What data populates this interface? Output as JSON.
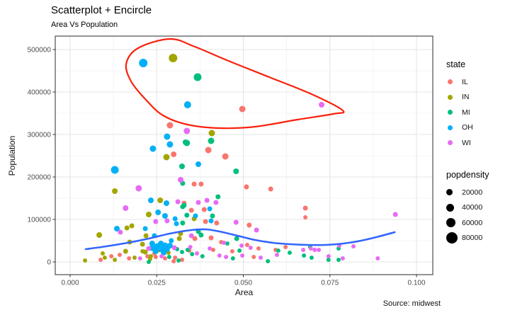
{
  "title": "Scatterplot + Encircle",
  "subtitle": "Area Vs Population",
  "caption": "Source: midwest",
  "axes": {
    "x": {
      "label": "Area"
    },
    "y": {
      "label": "Population"
    }
  },
  "legend": {
    "state": {
      "title": "state",
      "items": [
        {
          "label": "IL",
          "color": "#F8766D"
        },
        {
          "label": "IN",
          "color": "#A3A500"
        },
        {
          "label": "MI",
          "color": "#00BF7D"
        },
        {
          "label": "OH",
          "color": "#00B0F6"
        },
        {
          "label": "WI",
          "color": "#E76BF3"
        }
      ]
    },
    "popdensity": {
      "title": "popdensity",
      "items": [
        {
          "label": "20000",
          "diameter": 9
        },
        {
          "label": "40000",
          "diameter": 11
        },
        {
          "label": "60000",
          "diameter": 13
        },
        {
          "label": "80000",
          "diameter": 16
        }
      ]
    }
  },
  "chart_data": {
    "type": "scatter",
    "title": "Scatterplot + Encircle",
    "subtitle": "Area Vs Population",
    "xlabel": "Area",
    "ylabel": "Population",
    "xlim": [
      -0.0043,
      0.1047
    ],
    "ylim": [
      -30000,
      531667
    ],
    "x_ticks": {
      "values": [
        0,
        0.025,
        0.05,
        0.075,
        0.1
      ],
      "labels": [
        "0.000",
        "0.025",
        "0.050",
        "0.075",
        "0.100"
      ]
    },
    "y_ticks": {
      "values": [
        0,
        100000,
        200000,
        300000,
        400000,
        500000
      ],
      "labels": [
        "0",
        "100000",
        "200000",
        "300000",
        "400000",
        "500000"
      ]
    },
    "grid": "on",
    "legend_position": "right",
    "series": [
      {
        "name": "IL",
        "color": "#F8766D",
        "points": [
          [
            0.0288,
            321667,
            4.5
          ],
          [
            0.0299,
            253333,
            4
          ],
          [
            0.0399,
            263333,
            4.5
          ],
          [
            0.0448,
            248333,
            4.5
          ],
          [
            0.0497,
            360000,
            4.5
          ],
          [
            0.0358,
            183333,
            3.5
          ],
          [
            0.0378,
            183333,
            3.5
          ],
          [
            0.0509,
            176667,
            3.5
          ],
          [
            0.0579,
            171667,
            3.5
          ],
          [
            0.0679,
            126667,
            3.5
          ],
          [
            0.0679,
            105000,
            3
          ],
          [
            0.0329,
            138333,
            3.5
          ],
          [
            0.0387,
            123333,
            3.5
          ],
          [
            0.035,
            121667,
            3.5
          ],
          [
            0.0391,
            95000,
            3.5
          ],
          [
            0.0423,
            91667,
            3.5
          ],
          [
            0.0517,
            86667,
            3.5
          ],
          [
            0.0407,
            56667,
            3.5
          ],
          [
            0.036,
            55000,
            3.5
          ],
          [
            0.0436,
            46667,
            3
          ],
          [
            0.0511,
            40000,
            3
          ],
          [
            0.0544,
            31667,
            3
          ],
          [
            0.0468,
            25000,
            3
          ],
          [
            0.0413,
            28333,
            3
          ],
          [
            0.0344,
            26667,
            3
          ],
          [
            0.0622,
            35000,
            3
          ],
          [
            0.0593,
            28333,
            3
          ],
          [
            0.053,
            11667,
            3
          ],
          [
            0.0088,
            5000,
            3
          ],
          [
            0.0119,
            13333,
            3
          ],
          [
            0.0143,
            16667,
            3
          ],
          [
            0.017,
            8333,
            3
          ],
          [
            0.0223,
            13333,
            3
          ],
          [
            0.0243,
            20000,
            3
          ],
          [
            0.0274,
            8333,
            3
          ],
          [
            0.0303,
            10000,
            3
          ],
          [
            0.0247,
            11667,
            3
          ],
          [
            0.0299,
            1667,
            3
          ],
          [
            0.0323,
            5000,
            3
          ]
        ]
      },
      {
        "name": "IN",
        "color": "#A3A500",
        "points": [
          [
            0.0297,
            480000,
            6
          ],
          [
            0.0278,
            246667,
            4.5
          ],
          [
            0.0409,
            303333,
            4.5
          ],
          [
            0.0129,
            166667,
            4
          ],
          [
            0.026,
            145000,
            4
          ],
          [
            0.0227,
            111667,
            4
          ],
          [
            0.0358,
            101667,
            3.5
          ],
          [
            0.0084,
            63333,
            4
          ],
          [
            0.0164,
            80000,
            3.5
          ],
          [
            0.0178,
            85000,
            3.5
          ],
          [
            0.0219,
            61667,
            3.5
          ],
          [
            0.0319,
            66667,
            3.5
          ],
          [
            0.0172,
            46667,
            3.5
          ],
          [
            0.0209,
            41667,
            3.5
          ],
          [
            0.0315,
            55000,
            3.5
          ],
          [
            0.0043,
            3333,
            3
          ],
          [
            0.0094,
            20000,
            3
          ],
          [
            0.01,
            10000,
            3
          ],
          [
            0.0129,
            5000,
            3
          ],
          [
            0.016,
            25000,
            3.5
          ],
          [
            0.0186,
            10000,
            3
          ],
          [
            0.0209,
            25000,
            3
          ],
          [
            0.0217,
            23333,
            3.5
          ],
          [
            0.0231,
            6667,
            3
          ],
          [
            0.0233,
            13333,
            3
          ],
          [
            0.0256,
            28333,
            3.5
          ],
          [
            0.0284,
            21667,
            3
          ]
        ]
      },
      {
        "name": "MI",
        "color": "#00BF7D",
        "points": [
          [
            0.0368,
            435000,
            5.5
          ],
          [
            0.0333,
            281667,
            4
          ],
          [
            0.0323,
            225000,
            4
          ],
          [
            0.0325,
            185000,
            3.5
          ],
          [
            0.0337,
            280000,
            4.5
          ],
          [
            0.0407,
            285000,
            4.5
          ],
          [
            0.0479,
            213333,
            4
          ],
          [
            0.0427,
            153333,
            3.5
          ],
          [
            0.0329,
            133333,
            3.5
          ],
          [
            0.0325,
            130000,
            3.5
          ],
          [
            0.0337,
            110000,
            3.5
          ],
          [
            0.0411,
            108333,
            3.5
          ],
          [
            0.0325,
            91667,
            3.5
          ],
          [
            0.037,
            71667,
            3.5
          ],
          [
            0.0378,
            63333,
            3.5
          ],
          [
            0.0481,
            55000,
            3.5
          ],
          [
            0.0454,
            43333,
            3
          ],
          [
            0.0489,
            26667,
            3
          ],
          [
            0.0382,
            13333,
            3
          ],
          [
            0.047,
            8333,
            3
          ],
          [
            0.0571,
            1667,
            3
          ],
          [
            0.0601,
            26667,
            3
          ],
          [
            0.0634,
            21667,
            3
          ],
          [
            0.0675,
            15000,
            3
          ],
          [
            0.0693,
            35000,
            3
          ],
          [
            0.0775,
            31667,
            3
          ],
          [
            0.0697,
            10000,
            3
          ],
          [
            0.0746,
            5000,
            3
          ],
          [
            0.0775,
            5000,
            3
          ],
          [
            0.0227,
            0,
            3
          ],
          [
            0.0313,
            3333,
            3
          ],
          [
            0.0309,
            30000,
            3
          ],
          [
            0.0323,
            23333,
            3
          ],
          [
            0.0339,
            28333,
            3
          ],
          [
            0.0352,
            18333,
            3
          ],
          [
            0.0286,
            11667,
            3
          ]
        ]
      },
      {
        "name": "OH",
        "color": "#00B0F6",
        "points": [
          [
            0.0211,
            468333,
            6
          ],
          [
            0.0339,
            370000,
            5
          ],
          [
            0.028,
            295000,
            4.5
          ],
          [
            0.0288,
            276667,
            4.5
          ],
          [
            0.0239,
            266667,
            4.5
          ],
          [
            0.0129,
            216667,
            5.5
          ],
          [
            0.037,
            230000,
            4
          ],
          [
            0.0233,
            145000,
            4
          ],
          [
            0.0278,
            138333,
            4
          ],
          [
            0.0254,
            116667,
            4
          ],
          [
            0.0274,
            108333,
            4
          ],
          [
            0.0303,
            101667,
            3.5
          ],
          [
            0.0307,
            90000,
            3.5
          ],
          [
            0.0403,
            125000,
            3.5
          ],
          [
            0.0362,
            108333,
            3.5
          ],
          [
            0.0407,
            96667,
            3.5
          ],
          [
            0.0135,
            78333,
            4
          ],
          [
            0.0217,
            78333,
            3.5
          ],
          [
            0.0292,
            50000,
            3.5
          ],
          [
            0.0239,
            33333,
            5
          ],
          [
            0.0252,
            36667,
            4.5
          ],
          [
            0.0264,
            30000,
            4.5
          ],
          [
            0.0274,
            38333,
            4.5
          ],
          [
            0.0247,
            25000,
            4
          ],
          [
            0.0262,
            43333,
            4
          ],
          [
            0.028,
            30000,
            4
          ],
          [
            0.027,
            21667,
            4
          ],
          [
            0.0288,
            38333,
            4
          ],
          [
            0.0237,
            43333,
            4
          ],
          [
            0.0243,
            61667,
            3.5
          ]
        ]
      },
      {
        "name": "WI",
        "color": "#E76BF3",
        "points": [
          [
            0.0726,
            370000,
            4
          ],
          [
            0.0319,
            193333,
            4
          ],
          [
            0.0198,
            173333,
            4.5
          ],
          [
            0.0337,
            308333,
            4.5
          ],
          [
            0.016,
            126667,
            4
          ],
          [
            0.0311,
            141667,
            3.5
          ],
          [
            0.0247,
            95000,
            3.5
          ],
          [
            0.028,
            96667,
            3.5
          ],
          [
            0.037,
            140000,
            3.5
          ],
          [
            0.0395,
            145000,
            3.5
          ],
          [
            0.0421,
            140000,
            3.5
          ],
          [
            0.0479,
            93333,
            3.5
          ],
          [
            0.0538,
            75000,
            3.5
          ],
          [
            0.0145,
            70000,
            3.5
          ],
          [
            0.035,
            61667,
            3.5
          ],
          [
            0.0444,
            45000,
            3
          ],
          [
            0.0495,
            38333,
            3
          ],
          [
            0.0521,
            33333,
            3
          ],
          [
            0.0403,
            31667,
            3
          ],
          [
            0.0366,
            20000,
            3
          ],
          [
            0.0431,
            15000,
            3
          ],
          [
            0.045,
            11667,
            3
          ],
          [
            0.0497,
            15000,
            3
          ],
          [
            0.055,
            10000,
            3
          ],
          [
            0.0597,
            16667,
            3
          ],
          [
            0.0673,
            28333,
            3
          ],
          [
            0.0695,
            31667,
            3
          ],
          [
            0.0706,
            28333,
            3
          ],
          [
            0.0718,
            28333,
            3
          ],
          [
            0.0777,
            38333,
            3
          ],
          [
            0.0818,
            36667,
            3
          ],
          [
            0.0746,
            13333,
            3
          ],
          [
            0.0787,
            8333,
            3
          ],
          [
            0.0888,
            8333,
            3
          ],
          [
            0.0939,
            111667,
            3.5
          ],
          [
            0.0202,
            8333,
            3
          ],
          [
            0.0264,
            13333,
            3
          ],
          [
            0.0301,
            33333,
            3.5
          ],
          [
            0.0227,
            31667,
            3.5
          ],
          [
            0.0347,
            35000,
            3
          ]
        ]
      }
    ],
    "smooth_line": {
      "color": "#3366FF",
      "points": [
        [
          0.0045,
          30000
        ],
        [
          0.0104,
          36667
        ],
        [
          0.0166,
          45000
        ],
        [
          0.0227,
          55000
        ],
        [
          0.0288,
          66667
        ],
        [
          0.035,
          75000
        ],
        [
          0.0391,
          76667
        ],
        [
          0.0431,
          71667
        ],
        [
          0.0483,
          61667
        ],
        [
          0.0534,
          51667
        ],
        [
          0.0585,
          45000
        ],
        [
          0.0636,
          41667
        ],
        [
          0.0687,
          40000
        ],
        [
          0.0738,
          40000
        ],
        [
          0.0789,
          43333
        ],
        [
          0.084,
          50000
        ],
        [
          0.0892,
          60000
        ],
        [
          0.0937,
          70000
        ]
      ]
    },
    "encircle": {
      "color": "#F8220D",
      "points": [
        [
          0.0288,
          525000
        ],
        [
          0.036,
          506667
        ],
        [
          0.0452,
          475000
        ],
        [
          0.0575,
          435000
        ],
        [
          0.0697,
          395000
        ],
        [
          0.0787,
          356667
        ],
        [
          0.0759,
          348333
        ],
        [
          0.0656,
          335000
        ],
        [
          0.0534,
          318333
        ],
        [
          0.0431,
          315000
        ],
        [
          0.0339,
          323333
        ],
        [
          0.0268,
          345000
        ],
        [
          0.0217,
          383333
        ],
        [
          0.0176,
          425000
        ],
        [
          0.0162,
          466667
        ],
        [
          0.0196,
          503333
        ]
      ]
    },
    "style": {
      "panel_bg": "#FFFFFF",
      "panel_border": "#4D4D4D",
      "grid_major": "#E4E4E4",
      "grid_minor": "#F1F1F1",
      "tick_color": "#333333",
      "tick_label_color": "#4D4D4D"
    }
  }
}
